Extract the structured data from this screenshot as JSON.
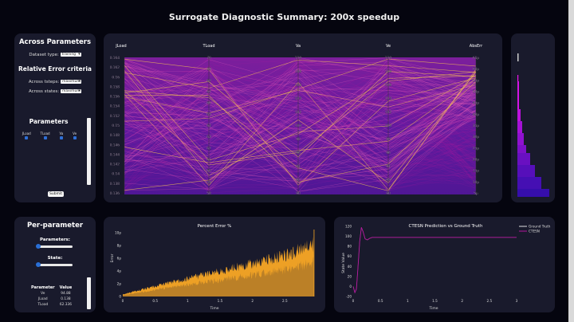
{
  "title": "Surrogate Diagnostic Summary: 200x speedup",
  "across_parameters": {
    "heading": "Across Parameters",
    "dataset_label": "Dataset type:",
    "dataset_value": "training",
    "criteria_heading": "Relative Error criteria",
    "tsteps_label": "Across tsteps:",
    "tsteps_value": "maximum",
    "states_label": "Across states:",
    "states_value": "maximum",
    "params_heading": "Parameters",
    "checkboxes": [
      {
        "label": "JLoad",
        "checked": true
      },
      {
        "label": "TLoad",
        "checked": true
      },
      {
        "label": "Va",
        "checked": true
      },
      {
        "label": "Ve",
        "checked": true
      }
    ],
    "submit_label": "Submit"
  },
  "parallel_coords": {
    "axes": [
      {
        "name": "JLoad",
        "ticks": [
          "0.164",
          "0.162",
          "0.16",
          "0.158",
          "0.156",
          "0.154",
          "0.152",
          "0.15",
          "0.148",
          "0.146",
          "0.144",
          "0.142",
          "0.14",
          "0.138",
          "0.136"
        ]
      },
      {
        "name": "TLoad",
        "ticks": [
          "70",
          "69",
          "68",
          "67",
          "66",
          "65",
          "64",
          "63",
          "62",
          "61",
          "60",
          "59",
          "58"
        ]
      },
      {
        "name": "Va",
        "ticks": [
          "110",
          "108",
          "106",
          "104",
          "102",
          "100",
          "98",
          "96",
          "94",
          "92",
          "90"
        ]
      },
      {
        "name": "Ve",
        "ticks": [
          "110",
          "108",
          "106",
          "104",
          "102",
          "100",
          "98",
          "96",
          "94",
          "92",
          "90"
        ]
      },
      {
        "name": "AbsErr",
        "ticks": [
          "65p",
          "60p",
          "55p",
          "50p",
          "45p",
          "40p",
          "35p",
          "30p",
          "25p",
          "20p",
          "15p",
          "10p",
          "5p"
        ]
      }
    ],
    "colors": {
      "low": "#3a0ca3",
      "mid": "#b5179e",
      "high": "#f9c74f"
    }
  },
  "per_parameter": {
    "heading": "Per-parameter",
    "parameters_label": "Parameters:",
    "parameters_slider": 0,
    "state_label": "State:",
    "state_slider": 0,
    "table_headers": [
      "Parameter",
      "Value"
    ],
    "rows": [
      {
        "param": "Ve",
        "value": "94.88"
      },
      {
        "param": "JLoad",
        "value": "0.138"
      },
      {
        "param": "TLoad",
        "value": "62.336"
      }
    ]
  },
  "chart_data": [
    {
      "type": "area",
      "title": "Percent Error %",
      "xlabel": "Time",
      "ylabel": "Error",
      "xticks": [
        "0",
        "0.5",
        "1",
        "1.5",
        "2",
        "2.5"
      ],
      "yticks": [
        "0",
        "2p",
        "4p",
        "6p",
        "8p",
        "10p"
      ],
      "xlim": [
        0,
        3
      ],
      "ylim": [
        0,
        10
      ],
      "color": "#f9a825",
      "trend": {
        "x": [
          0,
          0.5,
          1,
          1.5,
          2,
          2.5,
          2.95
        ],
        "y": [
          0.3,
          1.5,
          2.6,
          3.7,
          4.8,
          6.0,
          7.6
        ]
      }
    },
    {
      "type": "line",
      "title": "CTESN Prediction vs Ground Truth",
      "xlabel": "Time",
      "ylabel": "State Value",
      "xticks": [
        "0",
        "0.5",
        "1",
        "1.5",
        "2",
        "2.5",
        "3"
      ],
      "yticks": [
        "-20",
        "0",
        "20",
        "40",
        "60",
        "80",
        "100",
        "120"
      ],
      "xlim": [
        0,
        3
      ],
      "ylim": [
        -20,
        120
      ],
      "legend": [
        {
          "name": "Ground Truth",
          "color": "#e0e0e0"
        },
        {
          "name": "CTESN",
          "color": "#b5179e"
        }
      ],
      "legend_position": "top-right",
      "series": [
        {
          "name": "CTESN",
          "x": [
            0,
            0.03,
            0.06,
            0.09,
            0.12,
            0.15,
            0.18,
            0.22,
            0.26,
            0.3,
            0.35,
            0.4,
            0.5,
            0.7,
            1.0,
            2.0,
            3.0
          ],
          "y": [
            0,
            -12,
            -5,
            40,
            90,
            118,
            110,
            95,
            93,
            96,
            98,
            98,
            98,
            98,
            98,
            98,
            98
          ]
        }
      ]
    }
  ]
}
